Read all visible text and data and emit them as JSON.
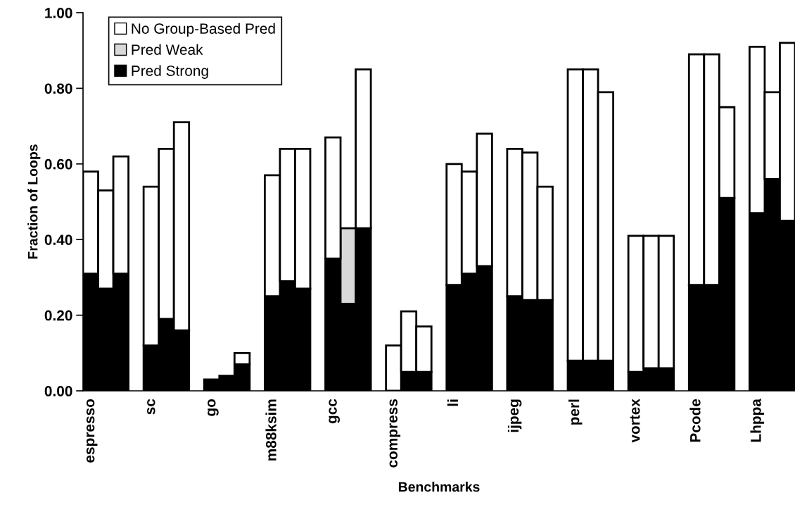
{
  "chart_data": {
    "type": "bar",
    "stacked": true,
    "xlabel": "Benchmarks",
    "ylabel": "Fraction of Loops",
    "categories": [
      "espresso",
      null,
      null,
      null,
      "sc",
      null,
      null,
      null,
      "go",
      null,
      null,
      null,
      "m88ksim",
      null,
      null,
      null,
      "gcc",
      null,
      null,
      null,
      "compress",
      null,
      null,
      null,
      "li",
      null,
      null,
      null,
      "ijpeg",
      null,
      null,
      null,
      "perl",
      null,
      null,
      null,
      "vortex",
      null,
      null,
      null,
      "Pcode",
      null,
      null,
      null,
      "Lhppa",
      null,
      null
    ],
    "series": [
      {
        "name": "Pred Strong",
        "color": "#000000",
        "values": [
          0.31,
          0.27,
          0.31,
          null,
          0.12,
          0.19,
          0.16,
          null,
          0.03,
          0.04,
          0.07,
          null,
          0.25,
          0.29,
          0.27,
          null,
          0.35,
          0.23,
          0.43,
          null,
          0,
          0.05,
          0.05,
          null,
          0.28,
          0.31,
          0.33,
          null,
          0.25,
          0.24,
          0.24,
          null,
          0.08,
          0.08,
          0.08,
          null,
          0.05,
          0.06,
          0.06,
          null,
          0.28,
          0.28,
          0.51,
          null,
          0.47,
          0.56,
          0.45
        ]
      },
      {
        "name": "Pred Weak",
        "color": "#d9d9d9",
        "values": [
          0,
          0,
          0,
          null,
          0,
          0,
          0,
          null,
          0,
          0,
          0,
          null,
          0,
          0,
          0,
          null,
          0,
          0.2,
          0,
          null,
          0,
          0,
          0,
          null,
          0,
          0,
          0,
          null,
          0,
          0,
          0,
          null,
          0,
          0,
          0,
          null,
          0,
          0,
          0,
          null,
          0,
          0,
          0,
          null,
          0,
          0,
          0
        ]
      },
      {
        "name": "No Group-Based Pred",
        "color": "#ffffff",
        "values": [
          0.27,
          0.26,
          0.31,
          null,
          0.42,
          0.45,
          0.55,
          null,
          0,
          0,
          0.03,
          null,
          0.32,
          0.35,
          0.37,
          null,
          0.32,
          0,
          0.42,
          null,
          0.12,
          0.16,
          0.12,
          null,
          0.32,
          0.27,
          0.35,
          null,
          0.39,
          0.39,
          0.3,
          null,
          0.77,
          0.77,
          0.71,
          null,
          0.36,
          0.35,
          0.35,
          null,
          0.61,
          0.61,
          0.24,
          null,
          0.44,
          0.23,
          0.47
        ]
      }
    ],
    "ylim": [
      0,
      1.0
    ],
    "yticks": [
      {
        "value": 0,
        "label": "0.00"
      },
      {
        "value": 0.2,
        "label": "0.20"
      },
      {
        "value": 0.4,
        "label": "0.40"
      },
      {
        "value": 0.6,
        "label": "0.60"
      },
      {
        "value": 0.8,
        "label": "0.80"
      },
      {
        "value": 1.0,
        "label": "1.00"
      }
    ],
    "grid": false,
    "legend": "top left"
  }
}
